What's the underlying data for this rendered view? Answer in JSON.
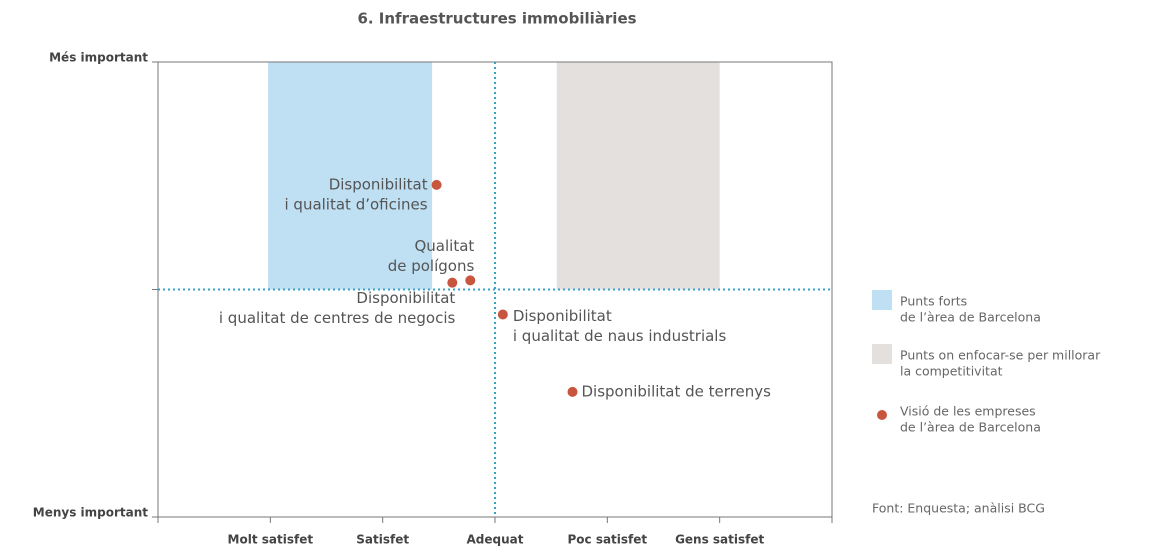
{
  "chart_data": {
    "type": "scatter",
    "title": "6. Infraestructures immobiliàries",
    "xlim": [
      0,
      6
    ],
    "xticks": [
      {
        "value": 1,
        "label": "Molt satisfet"
      },
      {
        "value": 2,
        "label": "Satisfet"
      },
      {
        "value": 3,
        "label": "Adequat"
      },
      {
        "value": 4,
        "label": "Poc satisfet"
      },
      {
        "value": 5,
        "label": "Gens satisfet"
      }
    ],
    "ylim": [
      -1,
      1
    ],
    "yticks": [
      {
        "value": -1,
        "label": "Menys important"
      },
      {
        "value": 1,
        "label": "Més important"
      }
    ],
    "hline": 0,
    "vline": 3,
    "regions": [
      {
        "name": [
          "Punts forts",
          "de l’àrea de Barcelona"
        ],
        "color": "#bfdff3",
        "x": [
          0.98,
          2.44
        ],
        "y": [
          0,
          1
        ]
      },
      {
        "name": [
          "Punts on enfocar-se per millorar",
          "la competitivitat"
        ],
        "color": "#e4e0dd",
        "x": [
          3.55,
          5.0
        ],
        "y": [
          0,
          1
        ]
      }
    ],
    "series": [
      {
        "name": [
          "Visió de les empreses",
          "de l’àrea de Barcelona"
        ],
        "color": "#c8553d",
        "labels": [
          [
            "Disponibilitat",
            "i qualitat d’oficines"
          ],
          [
            "Qualitat",
            "de polígons"
          ],
          [
            "Disponibilitat",
            "i qualitat de centres de negocis"
          ],
          [
            "Disponibilitat",
            "i qualitat de naus industrials"
          ],
          [
            "Disponibilitat de terrenys"
          ]
        ],
        "x": [
          2.48,
          2.78,
          2.62,
          3.07,
          3.69
        ],
        "values": [
          0.46,
          0.04,
          0.03,
          -0.11,
          -0.45
        ]
      }
    ],
    "source": "Font: Enquesta; anàlisi BCG"
  }
}
